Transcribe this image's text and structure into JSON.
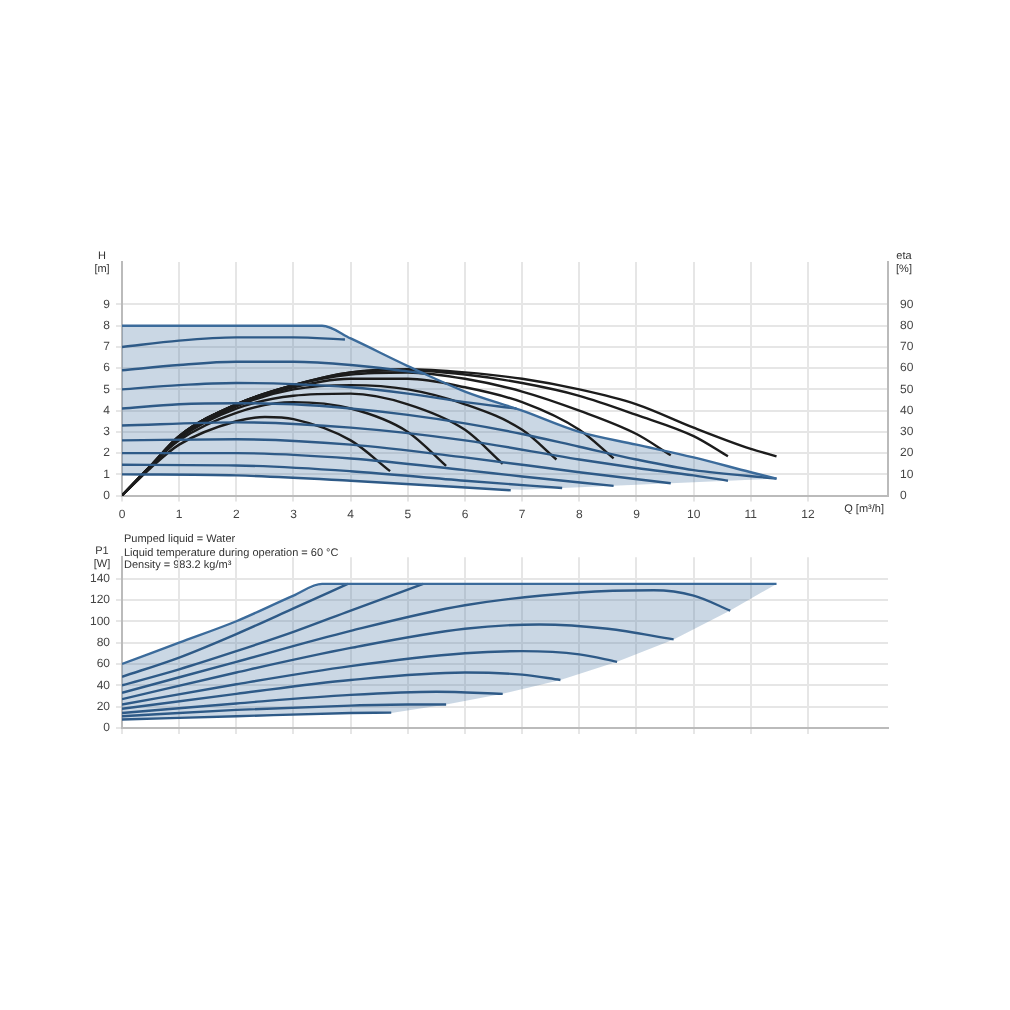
{
  "chart_data": [
    {
      "type": "line",
      "xlabel": "Q [m³/h]",
      "ylabel": "H [m]",
      "y2label": "eta [%]",
      "xlim": [
        0,
        13.4
      ],
      "xticks": [
        0,
        1,
        2,
        3,
        4,
        5,
        6,
        7,
        8,
        9,
        10,
        11,
        12
      ],
      "ylim": [
        0,
        11
      ],
      "yticks": [
        0,
        1,
        2,
        3,
        4,
        5,
        6,
        7,
        8,
        9
      ],
      "y2lim": [
        0,
        110
      ],
      "y2ticks": [
        0,
        10,
        20,
        30,
        40,
        50,
        60,
        70,
        80,
        90
      ],
      "grid": true,
      "legend": false,
      "annotations": [
        "Pumped liquid = Water",
        "Liquid temperature during operation = 60 °C",
        "Density = 983.2 kg/m³"
      ],
      "series": [
        {
          "color": "#3b6b9b",
          "x": [
            0,
            2,
            3.5,
            4,
            5,
            6,
            7,
            8,
            9,
            10,
            11,
            11.45
          ],
          "values": [
            8,
            8,
            8,
            7.4,
            6.1,
            4.9,
            4.0,
            3.0,
            2.4,
            1.8,
            1.1,
            0.8
          ],
          "upper": [
            8,
            8,
            8,
            7.4,
            6.1,
            4.9,
            4.0,
            3.0,
            2.4,
            1.8,
            1.1,
            0.8
          ],
          "lower": [
            1,
            0.95,
            0.8,
            0.7,
            0.55,
            0.4,
            0.27,
            0.39,
            0.51,
            0.63,
            0.75,
            0.8
          ]
        },
        {
          "type": "line",
          "color": "#2e5a87",
          "x": [
            0,
            1,
            2,
            3,
            3.9
          ],
          "values": [
            7.0,
            7.3,
            7.45,
            7.45,
            7.35
          ]
        },
        {
          "type": "line",
          "color": "#2e5a87",
          "x": [
            0,
            1,
            2,
            3,
            4,
            5,
            5.3
          ],
          "values": [
            5.9,
            6.15,
            6.3,
            6.3,
            6.15,
            5.85,
            5.75
          ]
        },
        {
          "type": "line",
          "color": "#2e5a87",
          "x": [
            0,
            1,
            2,
            3,
            4,
            5,
            6,
            6.9
          ],
          "values": [
            5.0,
            5.2,
            5.3,
            5.25,
            5.1,
            4.8,
            4.4,
            4.1
          ]
        },
        {
          "type": "line",
          "color": "#2e5a87",
          "x": [
            0,
            1,
            2,
            3,
            4,
            5,
            6,
            7,
            8,
            9,
            10,
            11.45
          ],
          "values": [
            4.1,
            4.3,
            4.35,
            4.3,
            4.1,
            3.8,
            3.4,
            2.9,
            2.3,
            1.7,
            1.2,
            0.8
          ]
        },
        {
          "type": "line",
          "color": "#2e5a87",
          "x": [
            0,
            2,
            4,
            6,
            8,
            9,
            10,
            10.6
          ],
          "values": [
            3.3,
            3.45,
            3.2,
            2.6,
            1.7,
            1.3,
            0.95,
            0.7
          ]
        },
        {
          "type": "line",
          "color": "#2e5a87",
          "x": [
            0,
            2,
            4,
            6,
            8,
            9.6
          ],
          "values": [
            2.6,
            2.65,
            2.4,
            1.8,
            1.1,
            0.58
          ]
        },
        {
          "type": "line",
          "color": "#2e5a87",
          "x": [
            0,
            2,
            4,
            6,
            7,
            8.6
          ],
          "values": [
            2.0,
            2.0,
            1.75,
            1.2,
            0.9,
            0.46
          ]
        },
        {
          "type": "line",
          "color": "#2e5a87",
          "x": [
            0,
            2,
            4,
            6,
            7.7
          ],
          "values": [
            1.45,
            1.42,
            1.15,
            0.7,
            0.36
          ]
        },
        {
          "type": "line",
          "color": "#2e5a87",
          "x": [
            0,
            2,
            4,
            6.8
          ],
          "values": [
            1.0,
            0.95,
            0.7,
            0.25
          ]
        },
        {
          "type": "line",
          "axis": "y2",
          "color": "#1c1c1c",
          "x": [
            0,
            0.5,
            1,
            2,
            2.5,
            3,
            4,
            4.69
          ],
          "values": [
            0,
            13,
            24,
            35,
            37,
            36,
            26,
            11.5
          ]
        },
        {
          "type": "line",
          "axis": "y2",
          "color": "#1c1c1c",
          "x": [
            0,
            0.5,
            1,
            2,
            3,
            4,
            5,
            5.67
          ],
          "values": [
            0,
            14,
            26,
            39,
            44,
            41,
            30,
            14
          ]
        },
        {
          "type": "line",
          "axis": "y2",
          "color": "#1c1c1c",
          "x": [
            0,
            0.5,
            1,
            2,
            3,
            4,
            5,
            6,
            6.66
          ],
          "values": [
            0,
            14,
            27,
            41,
            47,
            48,
            43,
            31,
            15
          ]
        },
        {
          "type": "line",
          "axis": "y2",
          "color": "#1c1c1c",
          "x": [
            0,
            0.5,
            1,
            2,
            3,
            4,
            5,
            6,
            7,
            7.6
          ],
          "values": [
            0,
            14,
            27,
            42,
            50,
            52,
            50,
            43,
            31,
            17
          ]
        },
        {
          "type": "line",
          "axis": "y2",
          "color": "#1c1c1c",
          "x": [
            0,
            0.5,
            1,
            2,
            3,
            4,
            5,
            6,
            7,
            8,
            8.6
          ],
          "values": [
            0,
            14,
            28,
            43,
            51,
            55,
            55,
            51,
            44,
            31,
            17.5
          ]
        },
        {
          "type": "line",
          "axis": "y2",
          "color": "#1c1c1c",
          "x": [
            0,
            0.5,
            1,
            2,
            3,
            4,
            5,
            6,
            7,
            8,
            9,
            9.6
          ],
          "values": [
            0,
            14,
            28,
            43,
            52,
            57,
            58,
            55,
            49,
            40,
            29,
            19
          ]
        },
        {
          "type": "line",
          "axis": "y2",
          "color": "#1c1c1c",
          "x": [
            0,
            0.5,
            1,
            2,
            3,
            4,
            5,
            6,
            7,
            8,
            9,
            10,
            10.6
          ],
          "values": [
            0,
            14,
            28,
            43,
            52,
            58,
            59,
            57,
            53,
            47,
            38,
            28,
            18.5
          ]
        },
        {
          "type": "line",
          "axis": "y2",
          "color": "#1c1c1c",
          "x": [
            0,
            0.5,
            1,
            2,
            3,
            4,
            5,
            6,
            7,
            8,
            9,
            10,
            11,
            11.45
          ],
          "values": [
            0,
            14,
            28,
            43,
            52,
            58,
            59.5,
            58,
            55,
            50,
            43,
            32,
            22,
            18.5
          ]
        }
      ]
    },
    {
      "type": "line",
      "ylabel": "P1 [W]",
      "xlim": [
        0,
        13.4
      ],
      "xticks": [
        0,
        1,
        2,
        3,
        4,
        5,
        6,
        7,
        8,
        9,
        10,
        11,
        12
      ],
      "ylim": [
        0,
        160
      ],
      "yticks": [
        0,
        20,
        40,
        60,
        80,
        100,
        120,
        140
      ],
      "grid": true,
      "legend": false,
      "tick_labels": "y",
      "series": [
        {
          "color": "#3b6b9b",
          "x": [
            0,
            1,
            2,
            3,
            3.5,
            4.71,
            5.67,
            6.66,
            7.67,
            8.66,
            9.65,
            10.64,
            11.45
          ],
          "values": [
            60,
            80,
            100,
            124,
            135,
            135,
            135,
            135,
            135,
            135,
            135,
            135,
            135
          ],
          "upper": [
            60,
            80,
            100,
            124,
            135,
            135,
            135,
            135,
            135,
            135,
            135,
            135,
            135
          ],
          "lower": [
            8,
            9.5,
            11,
            12.5,
            13,
            14,
            22,
            32,
            45,
            62,
            83,
            110,
            135
          ]
        },
        {
          "type": "line",
          "color": "#2e5a87",
          "x": [
            0,
            1,
            2,
            3,
            3.95
          ],
          "values": [
            48,
            66,
            88,
            112,
            135
          ]
        },
        {
          "type": "line",
          "color": "#2e5a87",
          "x": [
            0,
            1,
            2,
            3,
            4,
            5.27
          ],
          "values": [
            40,
            55,
            72,
            90,
            110,
            135
          ]
        },
        {
          "type": "line",
          "color": "#2e5a87",
          "x": [
            0,
            2,
            4,
            6,
            8,
            9.3,
            10,
            10.64
          ],
          "values": [
            33,
            62,
            91,
            115,
            127,
            129,
            124,
            110
          ]
        },
        {
          "type": "line",
          "color": "#2e5a87",
          "x": [
            0,
            2,
            4,
            6,
            7.3,
            8.5,
            9.65
          ],
          "values": [
            27,
            52,
            75,
            93,
            97,
            93,
            83
          ]
        },
        {
          "type": "line",
          "color": "#2e5a87",
          "x": [
            0,
            2,
            4,
            6,
            7,
            8,
            8.66
          ],
          "values": [
            22,
            41,
            58,
            70,
            72,
            69,
            62
          ]
        },
        {
          "type": "line",
          "color": "#2e5a87",
          "x": [
            0,
            2,
            4,
            6,
            7,
            7.67
          ],
          "values": [
            18,
            32,
            45,
            52,
            50,
            45
          ]
        },
        {
          "type": "line",
          "color": "#2e5a87",
          "x": [
            0,
            2,
            4,
            5.5,
            6.66
          ],
          "values": [
            14,
            23,
            31,
            34,
            32
          ]
        },
        {
          "type": "line",
          "color": "#2e5a87",
          "x": [
            0,
            2,
            4,
            5,
            5.67
          ],
          "values": [
            11,
            17,
            21,
            22,
            22
          ]
        },
        {
          "type": "line",
          "color": "#2e5a87",
          "x": [
            0,
            2,
            4,
            4.71
          ],
          "values": [
            8,
            11,
            14,
            14.4
          ]
        }
      ]
    }
  ]
}
